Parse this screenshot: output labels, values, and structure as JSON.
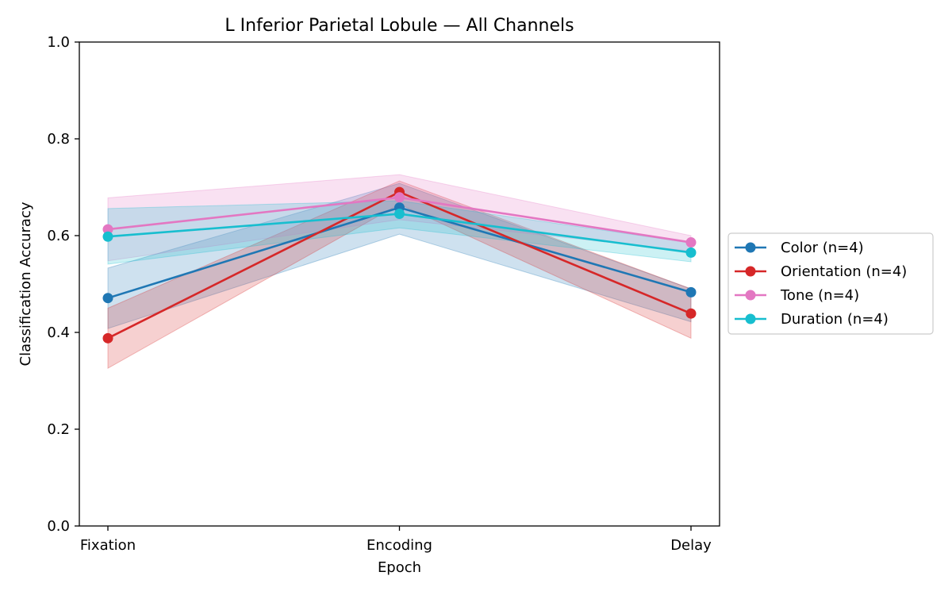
{
  "chart_data": {
    "type": "line",
    "title": "L Inferior Parietal Lobule — All Channels",
    "xlabel": "Epoch",
    "ylabel": "Classification Accuracy",
    "categories": [
      "Fixation",
      "Encoding",
      "Delay"
    ],
    "ylim": [
      0,
      1.0
    ],
    "yticks": [
      "0.0",
      "0.2",
      "0.4",
      "0.6",
      "0.8",
      "1.0"
    ],
    "grid": false,
    "legend_position": "outside-right",
    "series": [
      {
        "name": "Color (n=4)",
        "color": "#1f77b4",
        "values": [
          0.471,
          0.658,
          0.483
        ],
        "lower": [
          0.408,
          0.603,
          0.422
        ],
        "upper": [
          0.533,
          0.708,
          0.49
        ]
      },
      {
        "name": "Orientation (n=4)",
        "color": "#d62728",
        "values": [
          0.388,
          0.69,
          0.439
        ],
        "lower": [
          0.326,
          0.665,
          0.388
        ],
        "upper": [
          0.45,
          0.713,
          0.49
        ]
      },
      {
        "name": "Tone (n=4)",
        "color": "#e377c2",
        "values": [
          0.613,
          0.679,
          0.586
        ],
        "lower": [
          0.548,
          0.633,
          0.568
        ],
        "upper": [
          0.678,
          0.726,
          0.6
        ]
      },
      {
        "name": "Duration (n=4)",
        "color": "#17becf",
        "values": [
          0.598,
          0.645,
          0.565
        ],
        "lower": [
          0.541,
          0.616,
          0.546
        ],
        "upper": [
          0.656,
          0.672,
          0.585
        ]
      }
    ]
  }
}
